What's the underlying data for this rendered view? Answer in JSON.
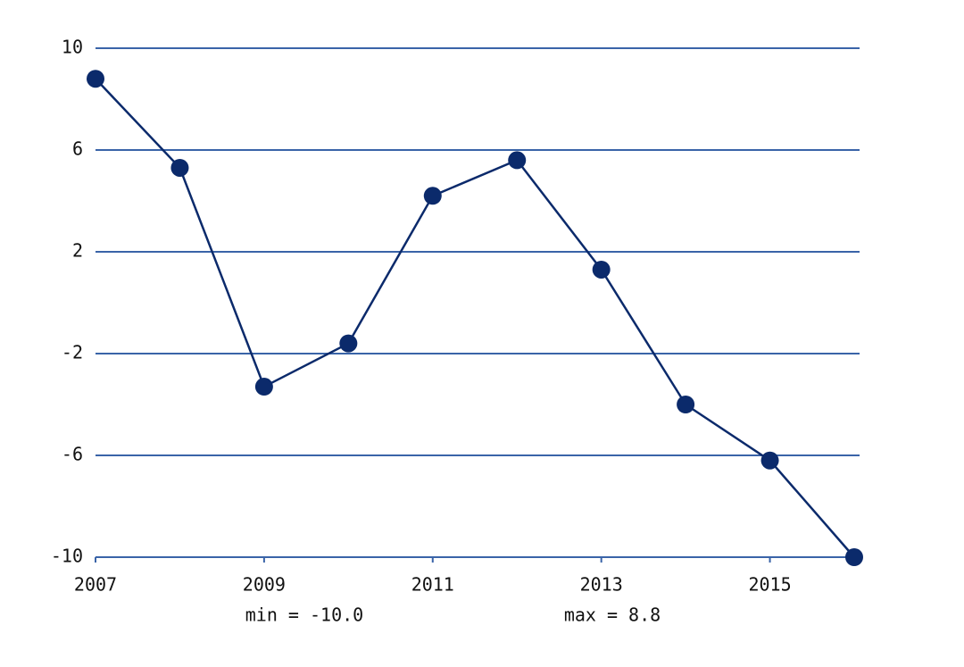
{
  "chart_data": {
    "type": "line",
    "x": [
      2007,
      2008,
      2009,
      2010,
      2011,
      2012,
      2013,
      2014,
      2015,
      2016
    ],
    "series": [
      {
        "color": "#0b2a6b",
        "values": [
          8.8,
          5.3,
          -3.3,
          -1.6,
          4.2,
          5.6,
          1.3,
          -4.0,
          -6.2,
          -10.0
        ]
      }
    ],
    "xlim": [
      2007,
      2016
    ],
    "xticks": [
      2007,
      2009,
      2011,
      2013,
      2015
    ],
    "ylim": [
      -10,
      10
    ],
    "yticks": [
      -10,
      -6,
      -2,
      2,
      6,
      10
    ],
    "grid": true,
    "grid_color": "#3a64a8",
    "annotations": [
      "min = -10.0",
      "max = 8.8"
    ]
  }
}
